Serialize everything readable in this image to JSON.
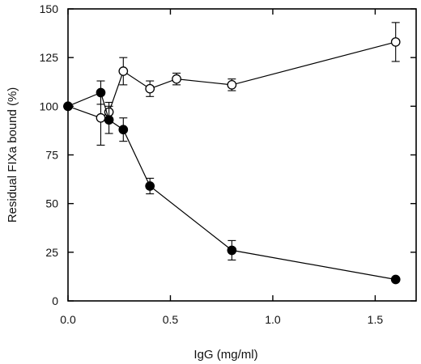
{
  "chart_data": {
    "type": "scatter",
    "title": "",
    "xlabel": "IgG (mg/ml)",
    "ylabel": "Residual FIXa bound (%)",
    "xlim": [
      0,
      1.7
    ],
    "ylim": [
      0,
      150
    ],
    "xticks": [
      0.0,
      0.5,
      1.0,
      1.5
    ],
    "xtick_labels": [
      "0.0",
      "0.5",
      "1.0",
      "1.5"
    ],
    "yticks": [
      0,
      25,
      50,
      75,
      100,
      125,
      150
    ],
    "ytick_labels": [
      "0",
      "25",
      "50",
      "75",
      "100",
      "125",
      "150"
    ],
    "grid": false,
    "legend": "none",
    "series": [
      {
        "marker": "open-circle",
        "color": "#000000",
        "x": [
          0.0,
          0.16,
          0.2,
          0.27,
          0.4,
          0.53,
          0.8,
          1.6
        ],
        "y": [
          100,
          94,
          97,
          118,
          109,
          114,
          111,
          133
        ],
        "err": [
          0,
          14,
          5,
          7,
          4,
          3,
          3,
          10
        ]
      },
      {
        "marker": "filled-circle",
        "color": "#000000",
        "x": [
          0.0,
          0.16,
          0.2,
          0.27,
          0.4,
          0.8,
          1.6
        ],
        "y": [
          100,
          107,
          93,
          88,
          59,
          26,
          11
        ],
        "err": [
          0,
          6,
          7,
          6,
          4,
          5,
          0
        ]
      }
    ]
  }
}
